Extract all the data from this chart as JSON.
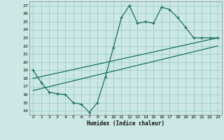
{
  "xlabel": "Humidex (Indice chaleur)",
  "bg_color": "#cce8e4",
  "grid_color": "#99cccc",
  "line_color": "#1a6e60",
  "xlim": [
    -0.5,
    23.5
  ],
  "ylim": [
    13.5,
    27.5
  ],
  "xticks": [
    0,
    1,
    2,
    3,
    4,
    5,
    6,
    7,
    8,
    9,
    10,
    11,
    12,
    13,
    14,
    15,
    16,
    17,
    18,
    19,
    20,
    21,
    22,
    23
  ],
  "yticks": [
    14,
    15,
    16,
    17,
    18,
    19,
    20,
    21,
    22,
    23,
    24,
    25,
    26,
    27
  ],
  "curve1_x": [
    0,
    1,
    2,
    3,
    4,
    5,
    6,
    7,
    8,
    9,
    10,
    11,
    12,
    13,
    14,
    15,
    16,
    17,
    18,
    19,
    20,
    21,
    22,
    23
  ],
  "curve1_y": [
    19.0,
    17.5,
    16.3,
    16.1,
    16.0,
    15.0,
    14.8,
    13.8,
    15.0,
    18.2,
    21.8,
    25.5,
    27.0,
    24.8,
    25.0,
    24.8,
    26.8,
    26.5,
    25.5,
    24.3,
    23.0,
    23.0,
    23.0,
    23.0
  ],
  "line2_x": [
    0,
    23
  ],
  "line2_y": [
    18.0,
    23.0
  ],
  "line3_x": [
    0,
    23
  ],
  "line3_y": [
    16.5,
    22.0
  ]
}
